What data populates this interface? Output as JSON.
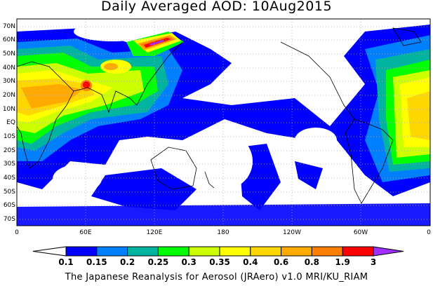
{
  "title": "Daily Averaged AOD: 10Aug2015",
  "map": {
    "variable": "AOD",
    "date": "10Aug2015",
    "lat_labels": [
      "70N",
      "60N",
      "50N",
      "40N",
      "30N",
      "20N",
      "10N",
      "EQ",
      "10S",
      "20S",
      "30S",
      "40S",
      "50S",
      "60S",
      "70S"
    ],
    "lon_labels": [
      "0",
      "60E",
      "120E",
      "180",
      "120W",
      "60W",
      "0"
    ],
    "grid": true
  },
  "colorbar": {
    "levels": [
      "0.1",
      "0.15",
      "0.2",
      "0.25",
      "0.3",
      "0.35",
      "0.4",
      "0.6",
      "0.8",
      "1.9",
      "3"
    ],
    "colors": [
      "#ffffff",
      "#0000ff",
      "#0080ff",
      "#00b4a0",
      "#00ff00",
      "#ccff00",
      "#ffff00",
      "#ffd700",
      "#ffaa00",
      "#ff7f00",
      "#ff0000",
      "#a030ff"
    ]
  },
  "footer": "The Japanese Reanalysis for Aerosol (JRAero) v1.0 MRI/KU_RIAM"
}
